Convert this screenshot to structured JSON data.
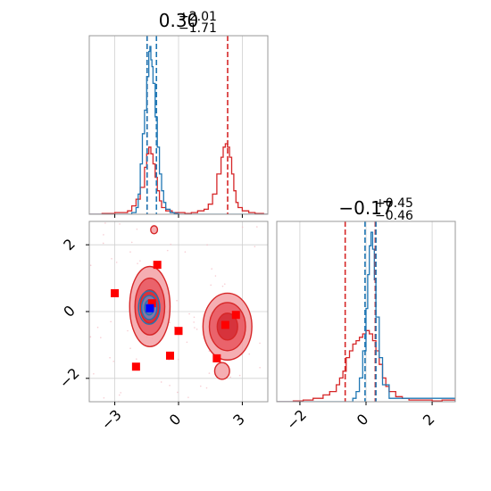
{
  "colors": {
    "red": "#d62728",
    "blue": "#1f77b4",
    "marker_red": "#ff0000",
    "marker_blue": "#0000ff",
    "grid": "#d0d0d0",
    "fill_light": "#f3a0a4",
    "fill_mid": "#e8565e",
    "fill_dark": "#d42a34"
  },
  "chart_data": [
    {
      "type": "area",
      "panel": "marginal-x",
      "title": {
        "median": "0.30",
        "plus": "+2.01",
        "minus": "−1.71"
      },
      "xlim": [
        -4.2,
        4.2
      ],
      "grid": true,
      "series": [
        {
          "color": "#d62728",
          "x": [
            -4.2,
            -3.9,
            -3.6,
            -3.3,
            -3.0,
            -2.7,
            -2.4,
            -2.2,
            -2.0,
            -1.8,
            -1.6,
            -1.5,
            -1.4,
            -1.3,
            -1.2,
            -1.1,
            -1.0,
            -0.9,
            -0.8,
            -0.6,
            -0.3,
            0.0,
            0.3,
            0.6,
            0.9,
            1.2,
            1.4,
            1.6,
            1.8,
            2.0,
            2.1,
            2.2,
            2.3,
            2.4,
            2.5,
            2.6,
            2.7,
            2.8,
            3.0,
            3.3,
            3.6,
            4.0,
            4.2
          ],
          "y": [
            0,
            0,
            0.005,
            0.005,
            0.01,
            0.01,
            0.02,
            0.05,
            0.09,
            0.16,
            0.28,
            0.36,
            0.4,
            0.36,
            0.3,
            0.22,
            0.14,
            0.08,
            0.04,
            0.02,
            0.01,
            0.01,
            0.005,
            0.01,
            0.02,
            0.03,
            0.06,
            0.12,
            0.24,
            0.34,
            0.4,
            0.42,
            0.4,
            0.34,
            0.24,
            0.14,
            0.07,
            0.04,
            0.02,
            0.01,
            0.005,
            0,
            0
          ]
        },
        {
          "color": "#1f77b4",
          "x": [
            -4.2,
            -2.4,
            -2.2,
            -2.0,
            -1.9,
            -1.8,
            -1.7,
            -1.6,
            -1.5,
            -1.4,
            -1.35,
            -1.3,
            -1.25,
            -1.2,
            -1.1,
            -1.0,
            -0.9,
            -0.8,
            -0.7,
            -0.6,
            -0.4,
            -0.2,
            0.0,
            4.2
          ],
          "y": [
            0,
            0,
            0.01,
            0.04,
            0.12,
            0.3,
            0.48,
            0.62,
            0.82,
            0.97,
            1.0,
            0.92,
            0.88,
            0.78,
            0.58,
            0.4,
            0.24,
            0.14,
            0.07,
            0.03,
            0.01,
            0.005,
            0,
            0
          ]
        }
      ],
      "vlines": [
        {
          "x": -1.48,
          "color": "#d62728"
        },
        {
          "x": 2.31,
          "color": "#d62728"
        },
        {
          "x": -1.48,
          "color": "#1f77b4"
        },
        {
          "x": -1.04,
          "color": "#1f77b4"
        }
      ]
    },
    {
      "type": "area",
      "panel": "marginal-y",
      "title": {
        "median": "−0.17",
        "plus": "+0.45",
        "minus": "−0.46"
      },
      "xlim": [
        -2.7,
        2.7
      ],
      "xticks": [
        -2,
        0,
        2
      ],
      "xtick_labels": [
        "−2",
        "0",
        "2"
      ],
      "grid": true,
      "series": [
        {
          "color": "#d62728",
          "x": [
            -2.7,
            -2.2,
            -1.9,
            -1.6,
            -1.3,
            -1.1,
            -0.9,
            -0.8,
            -0.7,
            -0.6,
            -0.5,
            -0.4,
            -0.3,
            -0.2,
            -0.1,
            0.0,
            0.1,
            0.2,
            0.3,
            0.4,
            0.5,
            0.6,
            0.7,
            0.9,
            1.1,
            1.3,
            1.6,
            2.0,
            2.3,
            2.7
          ],
          "y": [
            0,
            0.005,
            0.01,
            0.02,
            0.04,
            0.06,
            0.1,
            0.14,
            0.18,
            0.26,
            0.3,
            0.34,
            0.36,
            0.38,
            0.4,
            0.42,
            0.4,
            0.36,
            0.3,
            0.22,
            0.14,
            0.09,
            0.06,
            0.03,
            0.02,
            0.01,
            0.01,
            0.005,
            0.01,
            0
          ]
        },
        {
          "color": "#1f77b4",
          "x": [
            -2.7,
            -0.6,
            -0.4,
            -0.3,
            -0.2,
            -0.1,
            0.0,
            0.05,
            0.1,
            0.15,
            0.2,
            0.25,
            0.3,
            0.4,
            0.5,
            0.7,
            2.7
          ],
          "y": [
            0,
            0,
            0.02,
            0.06,
            0.14,
            0.3,
            0.55,
            0.75,
            0.92,
            1.0,
            0.9,
            0.72,
            0.5,
            0.26,
            0.1,
            0.02,
            0
          ]
        }
      ],
      "vlines": [
        {
          "x": -0.63,
          "color": "#d62728"
        },
        {
          "x": 0.28,
          "color": "#d62728"
        },
        {
          "x": -0.03,
          "color": "#1f77b4"
        },
        {
          "x": 0.3,
          "color": "#1f77b4"
        }
      ]
    },
    {
      "type": "scatter",
      "panel": "joint",
      "xlim": [
        -4.2,
        4.2
      ],
      "ylim": [
        -2.7,
        2.7
      ],
      "xticks": [
        -3,
        0,
        3
      ],
      "xtick_labels": [
        "−3",
        "0",
        "3"
      ],
      "yticks": [
        -2,
        0,
        2
      ],
      "ytick_labels": [
        "−2",
        "0",
        "2"
      ],
      "grid": true,
      "contours": [
        {
          "cx": -1.35,
          "cy": 0.15,
          "rx": [
            0.95,
            0.7,
            0.45
          ],
          "ry": [
            1.2,
            0.85,
            0.5
          ],
          "color": "#d62728"
        },
        {
          "cx": 2.3,
          "cy": -0.45,
          "rx": [
            1.15,
            0.85,
            0.48
          ],
          "ry": [
            1.0,
            0.72,
            0.4
          ],
          "color": "#d62728"
        },
        {
          "cx": 2.05,
          "cy": -1.78,
          "rx": [
            0.35
          ],
          "ry": [
            0.25
          ],
          "color": "#d62728"
        },
        {
          "cx": -1.15,
          "cy": 2.45,
          "rx": [
            0.16
          ],
          "ry": [
            0.12
          ],
          "color": "#d62728"
        },
        {
          "cx": -1.38,
          "cy": 0.12,
          "rx": [
            0.5,
            0.36,
            0.22
          ],
          "ry": [
            0.5,
            0.36,
            0.22
          ],
          "color": "#1f77b4"
        }
      ],
      "markers_red": [
        [
          -3.0,
          0.55
        ],
        [
          -1.0,
          1.4
        ],
        [
          -1.25,
          0.25
        ],
        [
          0.0,
          -0.58
        ],
        [
          -0.4,
          -1.32
        ],
        [
          -2.0,
          -1.65
        ],
        [
          1.8,
          -1.4
        ],
        [
          2.2,
          -0.4
        ],
        [
          2.7,
          -0.1
        ]
      ],
      "markers_blue": [
        [
          -1.35,
          0.1
        ]
      ]
    }
  ]
}
